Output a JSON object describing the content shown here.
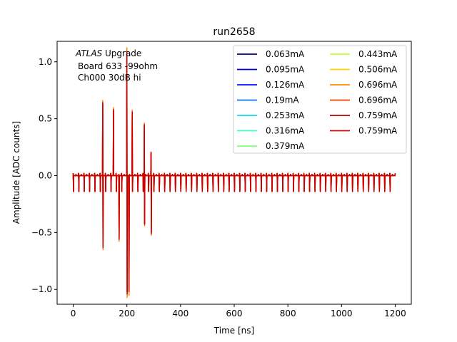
{
  "chart_data": {
    "type": "line",
    "title": "run2658",
    "xlabel": "Time [ns]",
    "ylabel": "Amplitude [ADC counts]",
    "xlim": [
      -60,
      1260
    ],
    "ylim": [
      -1.13,
      1.18
    ],
    "xticks": [
      0,
      200,
      400,
      600,
      800,
      1000,
      1200
    ],
    "xtick_labels": [
      "0",
      "200",
      "400",
      "600",
      "800",
      "1000",
      "1200"
    ],
    "yticks": [
      -1.0,
      -0.5,
      0.0,
      0.5,
      1.0
    ],
    "ytick_labels": [
      "−1.0",
      "−0.5",
      "0.0",
      "0.5",
      "1.0"
    ],
    "grid": false,
    "legend_position": "top-right",
    "legend_columns": 2,
    "annotation": {
      "italic_part": "ATLAS",
      "rest_line1": " Upgrade",
      "line2": "Board 633 -99ohm",
      "line3": "Ch000 30dB hi"
    },
    "series": [
      {
        "name": "0.063mA",
        "color": "#00007f",
        "peak_scale": 0.02
      },
      {
        "name": "0.095mA",
        "color": "#0000c4",
        "peak_scale": 0.03
      },
      {
        "name": "0.126mA",
        "color": "#0010ff",
        "peak_scale": 0.04
      },
      {
        "name": "0.19mA",
        "color": "#0078ff",
        "peak_scale": 0.06
      },
      {
        "name": "0.253mA",
        "color": "#0ddcea",
        "peak_scale": 0.08
      },
      {
        "name": "0.316mA",
        "color": "#3dffb9",
        "peak_scale": 0.1
      },
      {
        "name": "0.379mA",
        "color": "#7dff7a",
        "peak_scale": 0.12
      },
      {
        "name": "0.443mA",
        "color": "#c1ff36",
        "peak_scale": 0.15
      },
      {
        "name": "0.506mA",
        "color": "#ffd300",
        "peak_scale": 0.2
      },
      {
        "name": "0.696mA",
        "color": "#ff8c00",
        "peak_scale": 1.05
      },
      {
        "name": "0.696mA",
        "color": "#ff3b00",
        "peak_scale": 1.0
      },
      {
        "name": "0.759mA",
        "color": "#b20000",
        "peak_scale": 1.0
      },
      {
        "name": "0.759mA",
        "color": "#cc0000",
        "peak_scale": 1.02
      }
    ],
    "features": {
      "baseline": 0.0,
      "ringing_period_ns": 20,
      "ringing_amplitude_pos": 0.02,
      "ringing_amplitude_neg": -0.14,
      "ringing_range_ns": [
        0,
        1200
      ],
      "pulses": [
        {
          "t": 110,
          "pos": 0.63,
          "neg": -0.62
        },
        {
          "t": 150,
          "pos": 0.57,
          "neg": 0.0
        },
        {
          "t": 170,
          "pos": 0.0,
          "neg": -0.55
        },
        {
          "t": 200,
          "pos": 1.07,
          "neg": -1.02
        },
        {
          "t": 207,
          "pos": 0.0,
          "neg": -1.0
        },
        {
          "t": 220,
          "pos": 0.55,
          "neg": 0.0
        },
        {
          "t": 265,
          "pos": 0.44,
          "neg": -0.42
        },
        {
          "t": 290,
          "pos": 0.2,
          "neg": -0.5
        }
      ]
    }
  }
}
